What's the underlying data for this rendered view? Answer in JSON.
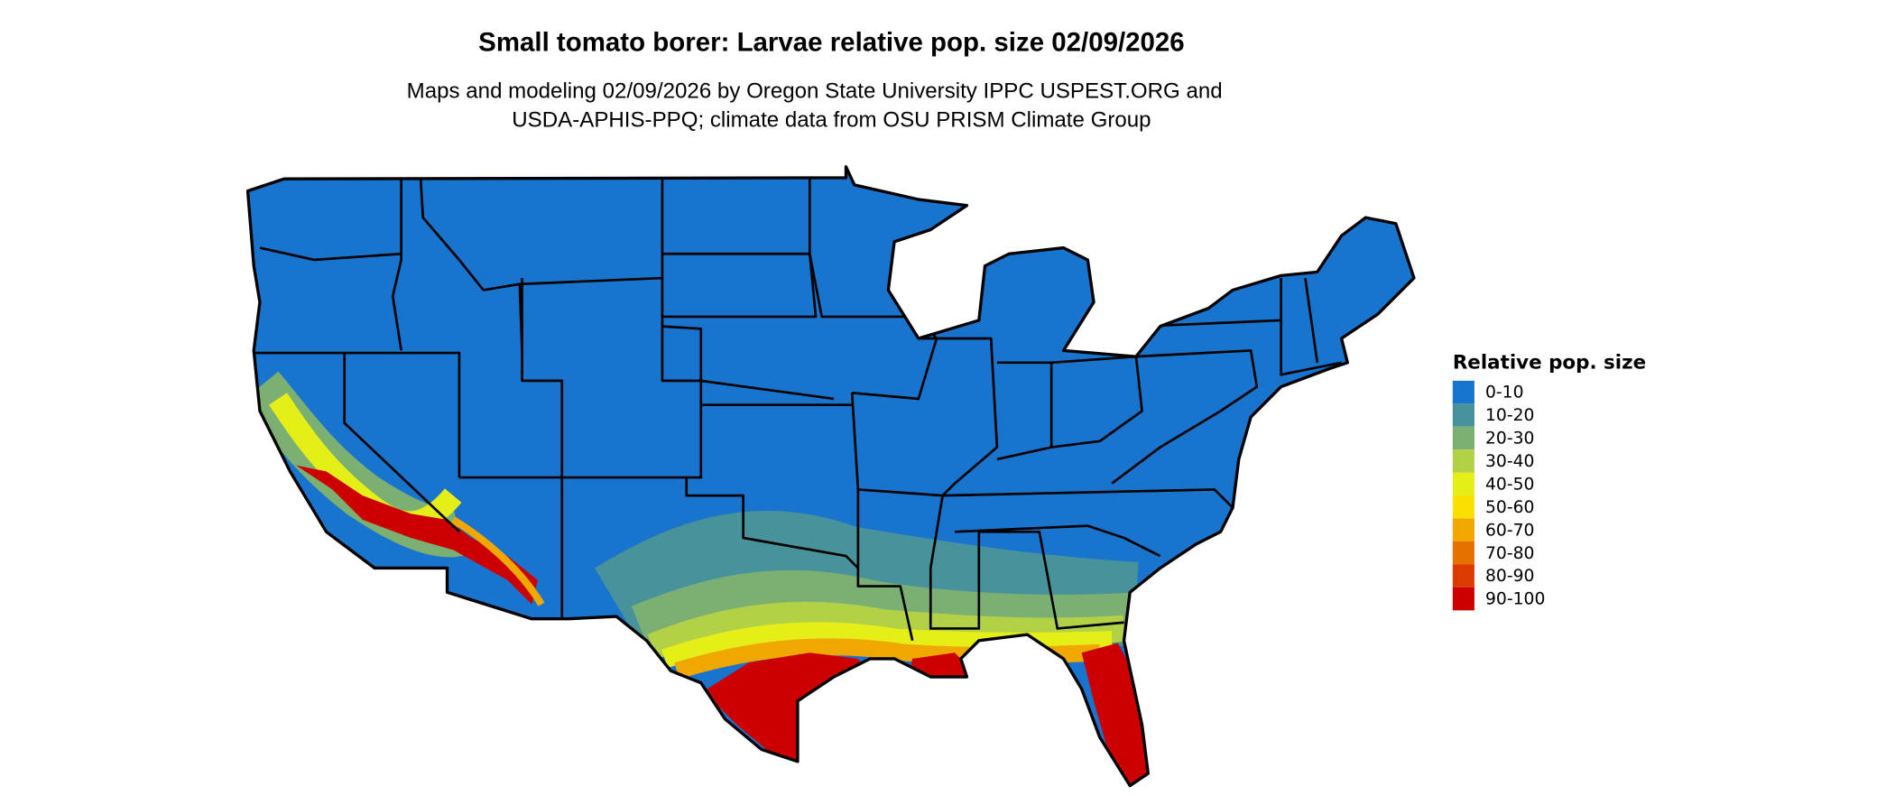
{
  "title": "Small tomato borer: Larvae relative pop. size 02/09/2026",
  "subtitle_line1": "Maps and modeling 02/09/2026 by Oregon State University IPPC USPEST.ORG and",
  "subtitle_line2": "USDA-APHIS-PPQ; climate data from OSU PRISM Climate Group",
  "legend": {
    "title": "Relative pop. size",
    "items": [
      {
        "label": "0-10",
        "color": "#1874CD"
      },
      {
        "label": "10-20",
        "color": "#48929B"
      },
      {
        "label": "20-30",
        "color": "#7CB073"
      },
      {
        "label": "30-40",
        "color": "#B2D147"
      },
      {
        "label": "40-50",
        "color": "#E5EF17"
      },
      {
        "label": "50-60",
        "color": "#F9E000"
      },
      {
        "label": "60-70",
        "color": "#F0A800"
      },
      {
        "label": "70-80",
        "color": "#E57200"
      },
      {
        "label": "80-90",
        "color": "#DC3A00"
      },
      {
        "label": "90-100",
        "color": "#CC0000"
      }
    ]
  }
}
